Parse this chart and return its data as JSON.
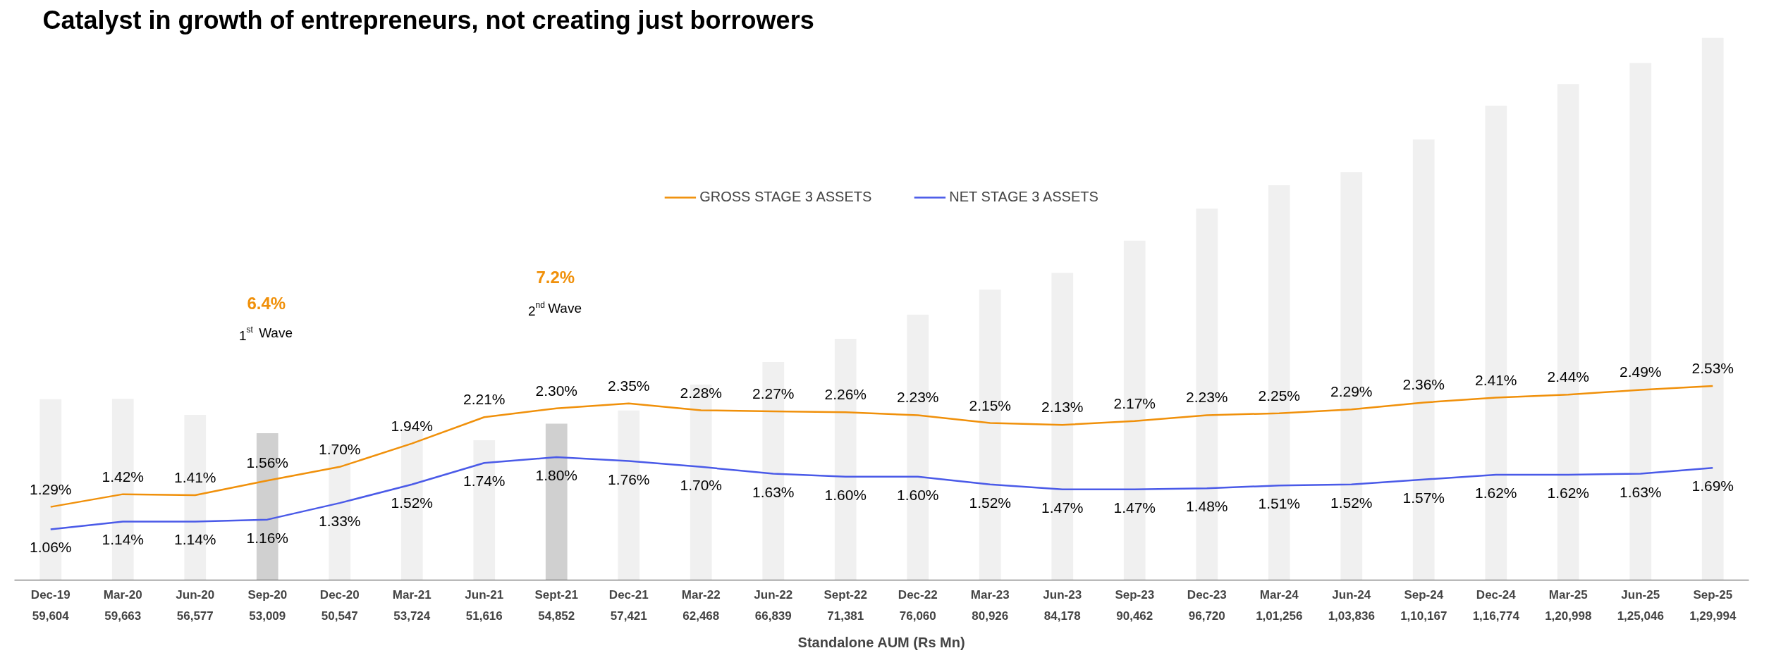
{
  "chart_data": {
    "type": "bar",
    "title": "Catalyst in growth of entrepreneurs, not creating just borrowers",
    "xlabel": "Standalone AUM (Rs Mn)",
    "categories": [
      "Dec-19",
      "Mar-20",
      "Jun-20",
      "Sep-20",
      "Dec-20",
      "Mar-21",
      "Jun-21",
      "Sept-21",
      "Dec-21",
      "Mar-22",
      "Jun-22",
      "Sept-22",
      "Dec-22",
      "Mar-23",
      "Jun-23",
      "Sep-23",
      "Dec-23",
      "Mar-24",
      "Jun-24",
      "Sep-24",
      "Dec-24",
      "Mar-25",
      "Jun-25",
      "Sep-25"
    ],
    "series": [
      {
        "values": [
          59604,
          59663,
          56577,
          53009,
          50547,
          53724,
          51616,
          54852,
          57421,
          62468,
          66839,
          71381,
          76060,
          80926,
          84178,
          90462,
          96720,
          101256,
          103836,
          110167,
          116774,
          120998,
          125046,
          129994
        ],
        "colors": [
          "#f0f0f0",
          "#f0f0f0",
          "#f0f0f0",
          "#d0d0d0",
          "#f0f0f0",
          "#f0f0f0",
          "#f0f0f0",
          "#d0d0d0",
          "#f0f0f0",
          "#f0f0f0",
          "#f0f0f0",
          "#f0f0f0",
          "#f0f0f0",
          "#f0f0f0",
          "#f0f0f0",
          "#f0f0f0",
          "#f0f0f0",
          "#f0f0f0",
          "#f0f0f0",
          "#f0f0f0",
          "#f0f0f0",
          "#f0f0f0",
          "#f0f0f0",
          "#f0f0f0"
        ],
        "value_labels": [
          "59,604",
          "59,663",
          "56,577",
          "53,009",
          "50,547",
          "53,724",
          "51,616",
          "54,852",
          "57,421",
          "62,468",
          "66,839",
          "71,381",
          "76,060",
          "80,926",
          "84,178",
          "90,462",
          "96,720",
          "1,01,256",
          "1,03,836",
          "1,10,167",
          "1,16,774",
          "1,20,998",
          "1,25,046",
          "1,29,994"
        ]
      },
      {
        "type": "line",
        "name": "GROSS STAGE 3 ASSETS",
        "color": "#f0900a",
        "axis": "y2",
        "values": [
          1.29,
          1.42,
          1.41,
          1.56,
          1.7,
          1.94,
          2.21,
          2.3,
          2.35,
          2.28,
          2.27,
          2.26,
          2.23,
          2.15,
          2.13,
          2.17,
          2.23,
          2.25,
          2.29,
          2.36,
          2.41,
          2.44,
          2.49,
          2.53
        ],
        "value_labels": [
          "1.29%",
          "1.42%",
          "1.41%",
          "1.56%",
          "1.70%",
          "1.94%",
          "2.21%",
          "2.30%",
          "2.35%",
          "2.28%",
          "2.27%",
          "2.26%",
          "2.23%",
          "2.15%",
          "2.13%",
          "2.17%",
          "2.23%",
          "2.25%",
          "2.29%",
          "2.36%",
          "2.41%",
          "2.44%",
          "2.49%",
          "2.53%"
        ]
      },
      {
        "type": "line",
        "name": "NET STAGE 3 ASSETS",
        "color": "#4a5ae8",
        "axis": "y2",
        "values": [
          1.06,
          1.14,
          1.14,
          1.16,
          1.33,
          1.52,
          1.74,
          1.8,
          1.76,
          1.7,
          1.63,
          1.6,
          1.6,
          1.52,
          1.47,
          1.47,
          1.48,
          1.51,
          1.52,
          1.57,
          1.62,
          1.62,
          1.63,
          1.69
        ],
        "value_labels": [
          "1.06%",
          "1.14%",
          "1.14%",
          "1.16%",
          "1.33%",
          "1.52%",
          "1.74%",
          "1.80%",
          "1.76%",
          "1.70%",
          "1.63%",
          "1.60%",
          "1.60%",
          "1.52%",
          "1.47%",
          "1.47%",
          "1.48%",
          "1.51%",
          "1.52%",
          "1.57%",
          "1.62%",
          "1.62%",
          "1.63%",
          "1.69%"
        ]
      }
    ],
    "ylim": [
      24400,
      130000
    ],
    "y2lim": [
      0.54,
      6.1
    ],
    "tick_labels": "x",
    "legend": "top",
    "grid": false,
    "marker": "none",
    "line_style": "solid",
    "annotations": [
      "6.4%",
      "1$^{st}$ Wave",
      "7.2%",
      "2$^{nd}$ Wave"
    ]
  }
}
